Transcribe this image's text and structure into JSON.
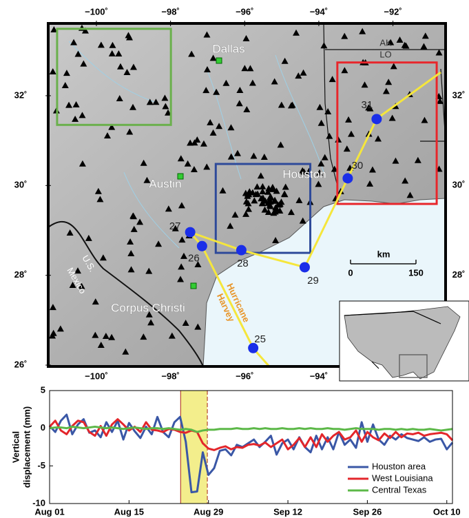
{
  "map": {
    "lon_ticks": [
      {
        "value": -100,
        "label": "−100˚"
      },
      {
        "value": -98,
        "label": "−98˚"
      },
      {
        "value": -96,
        "label": "−96˚"
      },
      {
        "value": -94,
        "label": "−94˚"
      },
      {
        "value": -92,
        "label": "−92˚"
      }
    ],
    "lat_ticks": [
      {
        "value": 32,
        "label": "32˚"
      },
      {
        "value": 30,
        "label": "30˚"
      },
      {
        "value": 28,
        "label": "28˚"
      },
      {
        "value": 26,
        "label": "26˚"
      }
    ],
    "lonlim": [
      -101.3,
      -90.58
    ],
    "latlim": [
      25.97,
      33.61
    ],
    "boxes": [
      {
        "color": "#6ab04c",
        "lon": [
          -101.06,
          -97.99
        ],
        "lat": [
          31.35,
          33.49
        ]
      },
      {
        "color": "#2e4a9a",
        "lon": [
          -96.78,
          -94.23
        ],
        "lat": [
          28.5,
          30.48
        ]
      },
      {
        "color": "#e8262b",
        "lon": [
          -93.5,
          -90.82
        ],
        "lat": [
          29.59,
          32.74
        ]
      }
    ],
    "track": {
      "color": "#f5e63c",
      "points": [
        {
          "label": "25",
          "lon": -95.77,
          "lat": 26.38
        },
        {
          "label": "26",
          "lon": -97.15,
          "lat": 28.65
        },
        {
          "label": "27",
          "lon": -97.47,
          "lat": 28.96
        },
        {
          "label": "28",
          "lon": -96.09,
          "lat": 28.56
        },
        {
          "label": "29",
          "lon": -94.38,
          "lat": 28.18
        },
        {
          "label": "30",
          "lon": -93.22,
          "lat": 30.16
        },
        {
          "label": "31",
          "lon": -92.44,
          "lat": 31.48
        }
      ]
    },
    "cities": [
      "Dallas",
      "Austin",
      "Houston",
      "Corpus Christi"
    ],
    "state_labels": [
      "AK",
      "LO"
    ],
    "country_labels": [
      "Mexico",
      "U.S."
    ],
    "storm_name": [
      "Hurricane",
      "Harvey"
    ],
    "scale_bar": {
      "unit": "km",
      "start": "0",
      "end": "150"
    }
  },
  "chart_data": {
    "type": "line",
    "ylabel_lines": [
      "Vertical",
      "displacement (mm)"
    ],
    "x": [
      0,
      1,
      2,
      3,
      4,
      5,
      6,
      7,
      8,
      9,
      10,
      11,
      12,
      13,
      14,
      15,
      16,
      17,
      18,
      19,
      20,
      21,
      22,
      23,
      24,
      25,
      26,
      27,
      28,
      29,
      30,
      31,
      32,
      33,
      34,
      35,
      36,
      37,
      38,
      39,
      40,
      41,
      42,
      43,
      44,
      45,
      46,
      47,
      48,
      49,
      50,
      51,
      52,
      53,
      54,
      55,
      56,
      57,
      58,
      59,
      60,
      61,
      62,
      63,
      64,
      65,
      66,
      67,
      68,
      69,
      70,
      71
    ],
    "xlim": [
      0,
      71
    ],
    "xticks": [
      {
        "value": 0,
        "label": "Aug 01"
      },
      {
        "value": 14,
        "label": "Aug 15"
      },
      {
        "value": 28,
        "label": "Aug 29"
      },
      {
        "value": 42,
        "label": "Sep 12"
      },
      {
        "value": 56,
        "label": "Sep 26"
      },
      {
        "value": 70,
        "label": "Oct 10"
      }
    ],
    "ylim": [
      -10,
      5
    ],
    "yticks": [
      -10,
      -5,
      0,
      5
    ],
    "highlight": {
      "range": [
        23.1,
        27.8
      ],
      "color": "#f3ee8c",
      "edge": "#b5442e"
    },
    "legend": "lower right",
    "series": [
      {
        "name": "Houston area",
        "color": "#3a57a6",
        "values": [
          0.3,
          -0.5,
          1,
          1.8,
          -0.8,
          0.5,
          1.2,
          -0.6,
          -0.3,
          -1.2,
          0.8,
          -0.5,
          1,
          -1.5,
          0.7,
          -0.4,
          -1.3,
          0.2,
          -0.8,
          1.5,
          -0.5,
          -1.2,
          0.8,
          1.5,
          -1.8,
          -8.5,
          -8.4,
          -3.2,
          -6.2,
          -5.3,
          -3,
          -2.8,
          -3.6,
          -2.2,
          -2.5,
          -2,
          -1.5,
          -2.5,
          -1.8,
          -1,
          -3.5,
          -2,
          -1.5,
          -2.8,
          -1.2,
          -2.5,
          -3.2,
          -1,
          -2.8,
          -1.2,
          -2.8,
          -0.5,
          -2.2,
          -1.5,
          -2.6,
          0.8,
          -1.8,
          0.5,
          -1.5,
          -2.2,
          -1,
          -1.5,
          -0.8,
          -1.3,
          -1.5,
          -1.7,
          -1.2,
          -1.8,
          -1.5,
          -1.4,
          -2.8,
          -1.9
        ]
      },
      {
        "name": "West Louisiana",
        "color": "#e3262b",
        "values": [
          0.2,
          1,
          -0.3,
          -0.8,
          0.3,
          1,
          0.8,
          -0.5,
          -1,
          0.3,
          -1,
          0.5,
          1.2,
          0.5,
          -0.3,
          0.2,
          -0.5,
          0.8,
          -0.2,
          -0.3,
          -0.5,
          -0.1,
          -0.2,
          -0.5,
          -0.6,
          -0.3,
          -0.5,
          -2,
          -2.7,
          -2.9,
          -2.6,
          -2.4,
          -2.8,
          -2.5,
          -2.6,
          -2.2,
          -2.1,
          -2.3,
          -1.9,
          -2.5,
          -2,
          -1.5,
          -2.8,
          -2.2,
          -1.3,
          -2.5,
          -1.2,
          -2.5,
          -0.8,
          -1.8,
          -1,
          -0.5,
          -1.5,
          -1.2,
          -0.3,
          -1.8,
          -0.5,
          -1.2,
          -1.6,
          -0.7,
          -1.3,
          -0.5,
          -1.2,
          -0.7,
          -0.8,
          -0.6,
          -1,
          -0.8,
          -0.7,
          -0.6,
          -0.8,
          -1.6
        ]
      },
      {
        "name": "Central Texas",
        "color": "#5cb848",
        "values": [
          0,
          0.1,
          0.1,
          0,
          0.2,
          0.1,
          0,
          0.1,
          0.2,
          0.1,
          0,
          0.1,
          0,
          -0.1,
          0,
          0.1,
          0,
          -0.1,
          0,
          0,
          -0.1,
          0,
          -0.1,
          -0.2,
          -0.1,
          -0.2,
          -0.5,
          -0.3,
          -0.2,
          -0.2,
          -0.1,
          -0.1,
          -0.1,
          0,
          -0.1,
          -0.1,
          0,
          -0.1,
          0,
          -0.1,
          -0.1,
          0,
          -0.1,
          -0.1,
          0,
          -0.1,
          0,
          -0.1,
          -0.1,
          0,
          -0.1,
          -0.1,
          -0.2,
          -0.1,
          0,
          -0.1,
          -0.1,
          -0.1,
          -0.2,
          -0.1,
          -0.1,
          -0.2,
          -0.1,
          -0.2,
          -0.1,
          -0.2,
          -0.2,
          -0.1,
          -0.2,
          -0.3,
          -0.2,
          -0.1
        ]
      }
    ]
  }
}
